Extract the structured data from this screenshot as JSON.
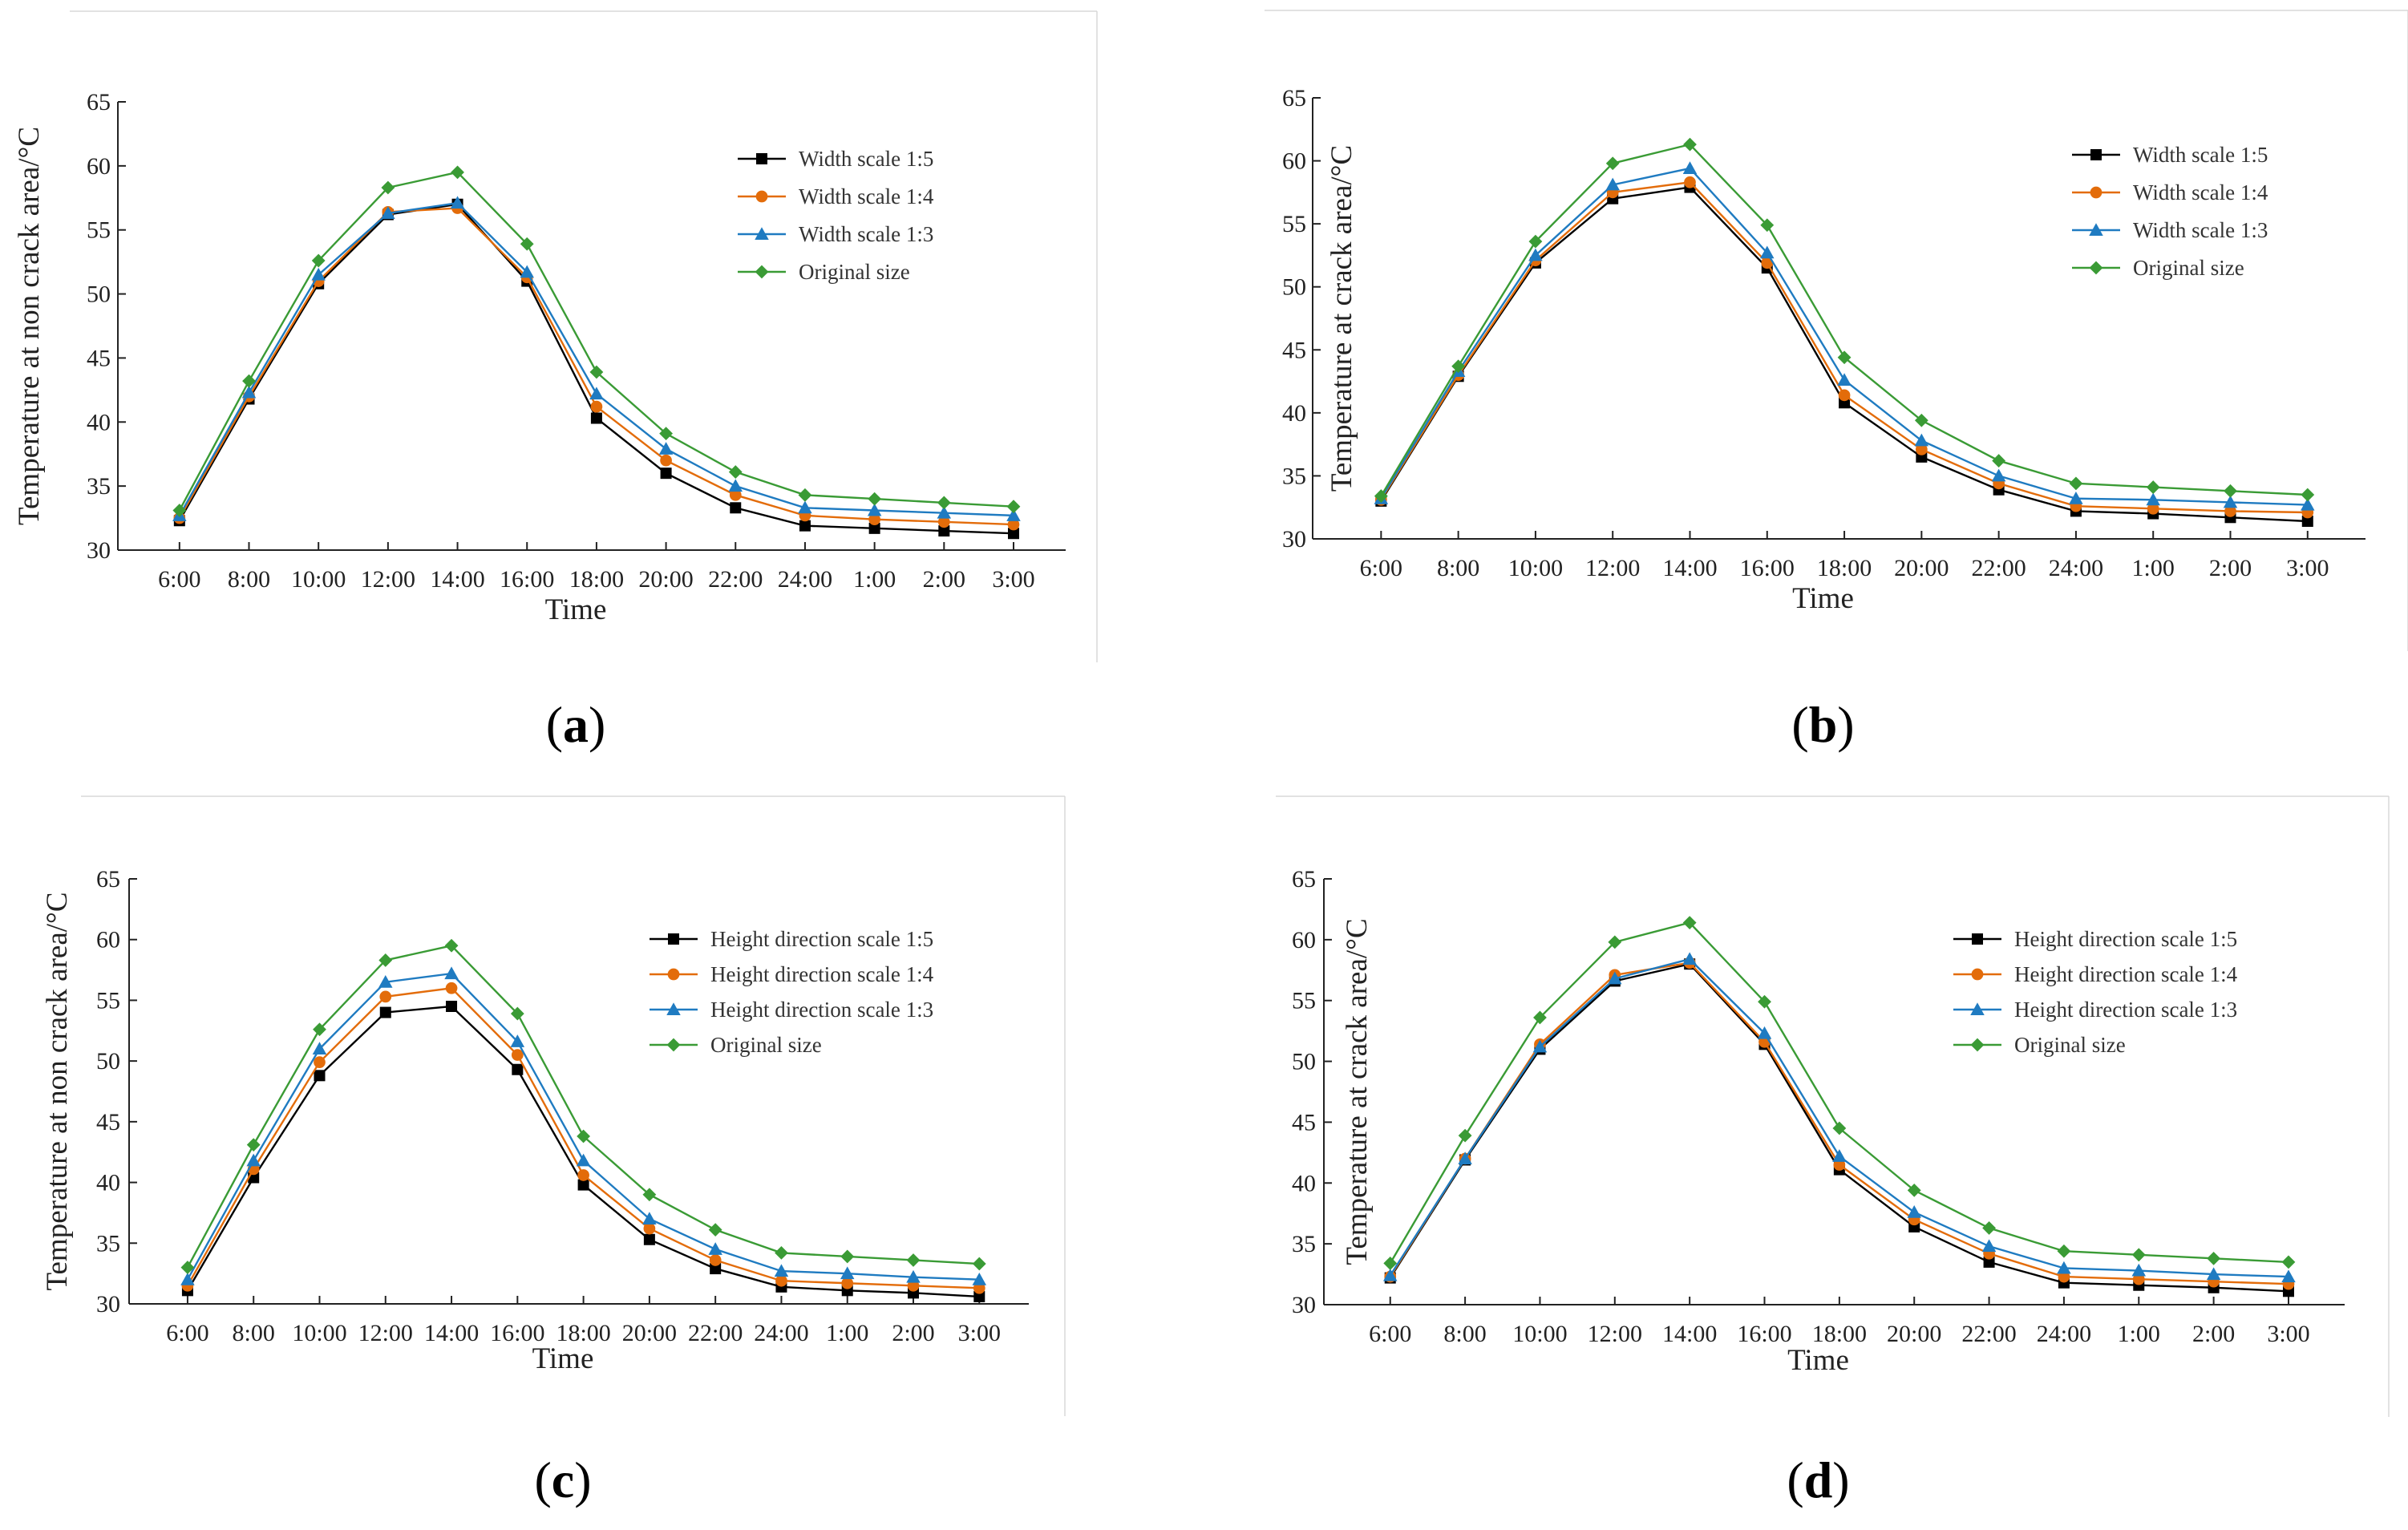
{
  "chart_data": [
    {
      "id": "a",
      "type": "line",
      "panel_label": "(a)",
      "panel_letter": "a",
      "xlabel": "Time",
      "ylabel": "Temperature at non crack area/°C",
      "ylim": [
        30,
        65
      ],
      "yticks": [
        30,
        35,
        40,
        45,
        50,
        55,
        60,
        65
      ],
      "categories": [
        "6:00",
        "8:00",
        "10:00",
        "12:00",
        "14:00",
        "16:00",
        "18:00",
        "20:00",
        "22:00",
        "24:00",
        "1:00",
        "2:00",
        "3:00"
      ],
      "legend_position": "top-right",
      "series": [
        {
          "name": "Width scale 1:5",
          "color": "#000000",
          "marker": "square",
          "values": [
            32.3,
            41.8,
            50.8,
            56.2,
            57.0,
            51.0,
            40.3,
            36.0,
            33.3,
            31.9,
            31.7,
            31.5,
            31.3
          ]
        },
        {
          "name": "Width scale 1:4",
          "color": "#E36C0A",
          "marker": "circle",
          "values": [
            32.5,
            42.0,
            51.0,
            56.4,
            56.7,
            51.3,
            41.2,
            37.0,
            34.3,
            32.7,
            32.4,
            32.2,
            32.0
          ]
        },
        {
          "name": "Width scale 1:3",
          "color": "#1F7BC1",
          "marker": "triangle",
          "values": [
            32.7,
            42.3,
            51.5,
            56.3,
            57.1,
            51.7,
            42.2,
            37.9,
            35.0,
            33.3,
            33.1,
            32.9,
            32.7
          ]
        },
        {
          "name": "Original size",
          "color": "#3A9B35",
          "marker": "diamond",
          "values": [
            33.1,
            43.2,
            52.6,
            58.3,
            59.5,
            53.9,
            43.9,
            39.1,
            36.1,
            34.3,
            34.0,
            33.7,
            33.4
          ]
        }
      ]
    },
    {
      "id": "b",
      "type": "line",
      "panel_label": "(b)",
      "panel_letter": "b",
      "xlabel": "Time",
      "ylabel": "Temperature at crack area/°C",
      "ylim": [
        30,
        65
      ],
      "yticks": [
        30,
        35,
        40,
        45,
        50,
        55,
        60,
        65
      ],
      "categories": [
        "6:00",
        "8:00",
        "10:00",
        "12:00",
        "14:00",
        "16:00",
        "18:00",
        "20:00",
        "22:00",
        "24:00",
        "1:00",
        "2:00",
        "3:00"
      ],
      "legend_position": "top-right",
      "series": [
        {
          "name": "Width scale 1:5",
          "color": "#000000",
          "marker": "square",
          "values": [
            33.0,
            42.9,
            51.9,
            57.0,
            57.9,
            51.5,
            40.8,
            36.5,
            33.9,
            32.2,
            32.0,
            31.7,
            31.4
          ]
        },
        {
          "name": "Width scale 1:4",
          "color": "#E36C0A",
          "marker": "circle",
          "values": [
            33.1,
            43.0,
            52.1,
            57.5,
            58.3,
            51.9,
            41.4,
            37.1,
            34.4,
            32.6,
            32.4,
            32.2,
            32.1
          ]
        },
        {
          "name": "Width scale 1:3",
          "color": "#1F7BC1",
          "marker": "triangle",
          "values": [
            33.2,
            43.3,
            52.5,
            58.1,
            59.4,
            52.7,
            42.6,
            37.8,
            35.0,
            33.2,
            33.1,
            32.9,
            32.7
          ]
        },
        {
          "name": "Original size",
          "color": "#3A9B35",
          "marker": "diamond",
          "values": [
            33.4,
            43.7,
            53.6,
            59.8,
            61.3,
            54.9,
            44.4,
            39.4,
            36.2,
            34.4,
            34.1,
            33.8,
            33.5
          ]
        }
      ]
    },
    {
      "id": "c",
      "type": "line",
      "panel_label": "(c)",
      "panel_letter": "c",
      "xlabel": "Time",
      "ylabel": "Temperature at non crack area/°C",
      "ylim": [
        30,
        65
      ],
      "yticks": [
        30,
        35,
        40,
        45,
        50,
        55,
        60,
        65
      ],
      "categories": [
        "6:00",
        "8:00",
        "10:00",
        "12:00",
        "14:00",
        "16:00",
        "18:00",
        "20:00",
        "22:00",
        "24:00",
        "1:00",
        "2:00",
        "3:00"
      ],
      "legend_position": "top-right",
      "series": [
        {
          "name": "Height direction scale 1:5",
          "color": "#000000",
          "marker": "square",
          "values": [
            31.1,
            40.4,
            48.8,
            54.0,
            54.5,
            49.3,
            39.8,
            35.3,
            32.9,
            31.4,
            31.1,
            30.9,
            30.6
          ]
        },
        {
          "name": "Height direction scale 1:4",
          "color": "#E36C0A",
          "marker": "circle",
          "values": [
            31.5,
            41.1,
            49.9,
            55.3,
            56.0,
            50.5,
            40.6,
            36.2,
            33.6,
            31.9,
            31.7,
            31.5,
            31.3
          ]
        },
        {
          "name": "Height direction scale 1:3",
          "color": "#1F7BC1",
          "marker": "triangle",
          "values": [
            32.0,
            41.8,
            51.0,
            56.5,
            57.2,
            51.6,
            41.8,
            37.0,
            34.5,
            32.7,
            32.5,
            32.2,
            32.0
          ]
        },
        {
          "name": "Original size",
          "color": "#3A9B35",
          "marker": "diamond",
          "values": [
            33.0,
            43.1,
            52.6,
            58.3,
            59.5,
            53.9,
            43.8,
            39.0,
            36.1,
            34.2,
            33.9,
            33.6,
            33.3
          ]
        }
      ]
    },
    {
      "id": "d",
      "type": "line",
      "panel_label": "(d)",
      "panel_letter": "d",
      "xlabel": "Time",
      "ylabel": "Temperature at crack area/°C",
      "ylim": [
        30,
        65
      ],
      "yticks": [
        30,
        35,
        40,
        45,
        50,
        55,
        60,
        65
      ],
      "categories": [
        "6:00",
        "8:00",
        "10:00",
        "12:00",
        "14:00",
        "16:00",
        "18:00",
        "20:00",
        "22:00",
        "24:00",
        "1:00",
        "2:00",
        "3:00"
      ],
      "legend_position": "top-right",
      "series": [
        {
          "name": "Height direction scale 1:5",
          "color": "#000000",
          "marker": "square",
          "values": [
            32.2,
            41.9,
            51.0,
            56.6,
            58.0,
            51.4,
            41.1,
            36.4,
            33.5,
            31.8,
            31.6,
            31.4,
            31.1
          ]
        },
        {
          "name": "Height direction scale 1:4",
          "color": "#E36C0A",
          "marker": "circle",
          "values": [
            32.3,
            42.0,
            51.4,
            57.1,
            58.1,
            51.6,
            41.5,
            37.0,
            34.2,
            32.3,
            32.1,
            31.9,
            31.7
          ]
        },
        {
          "name": "Height direction scale 1:3",
          "color": "#1F7BC1",
          "marker": "triangle",
          "values": [
            32.4,
            42.0,
            51.2,
            56.8,
            58.4,
            52.3,
            42.2,
            37.6,
            34.8,
            33.0,
            32.8,
            32.5,
            32.3
          ]
        },
        {
          "name": "Original size",
          "color": "#3A9B35",
          "marker": "diamond",
          "values": [
            33.4,
            43.9,
            53.6,
            59.8,
            61.4,
            54.9,
            44.5,
            39.4,
            36.3,
            34.4,
            34.1,
            33.8,
            33.5
          ]
        }
      ]
    }
  ]
}
